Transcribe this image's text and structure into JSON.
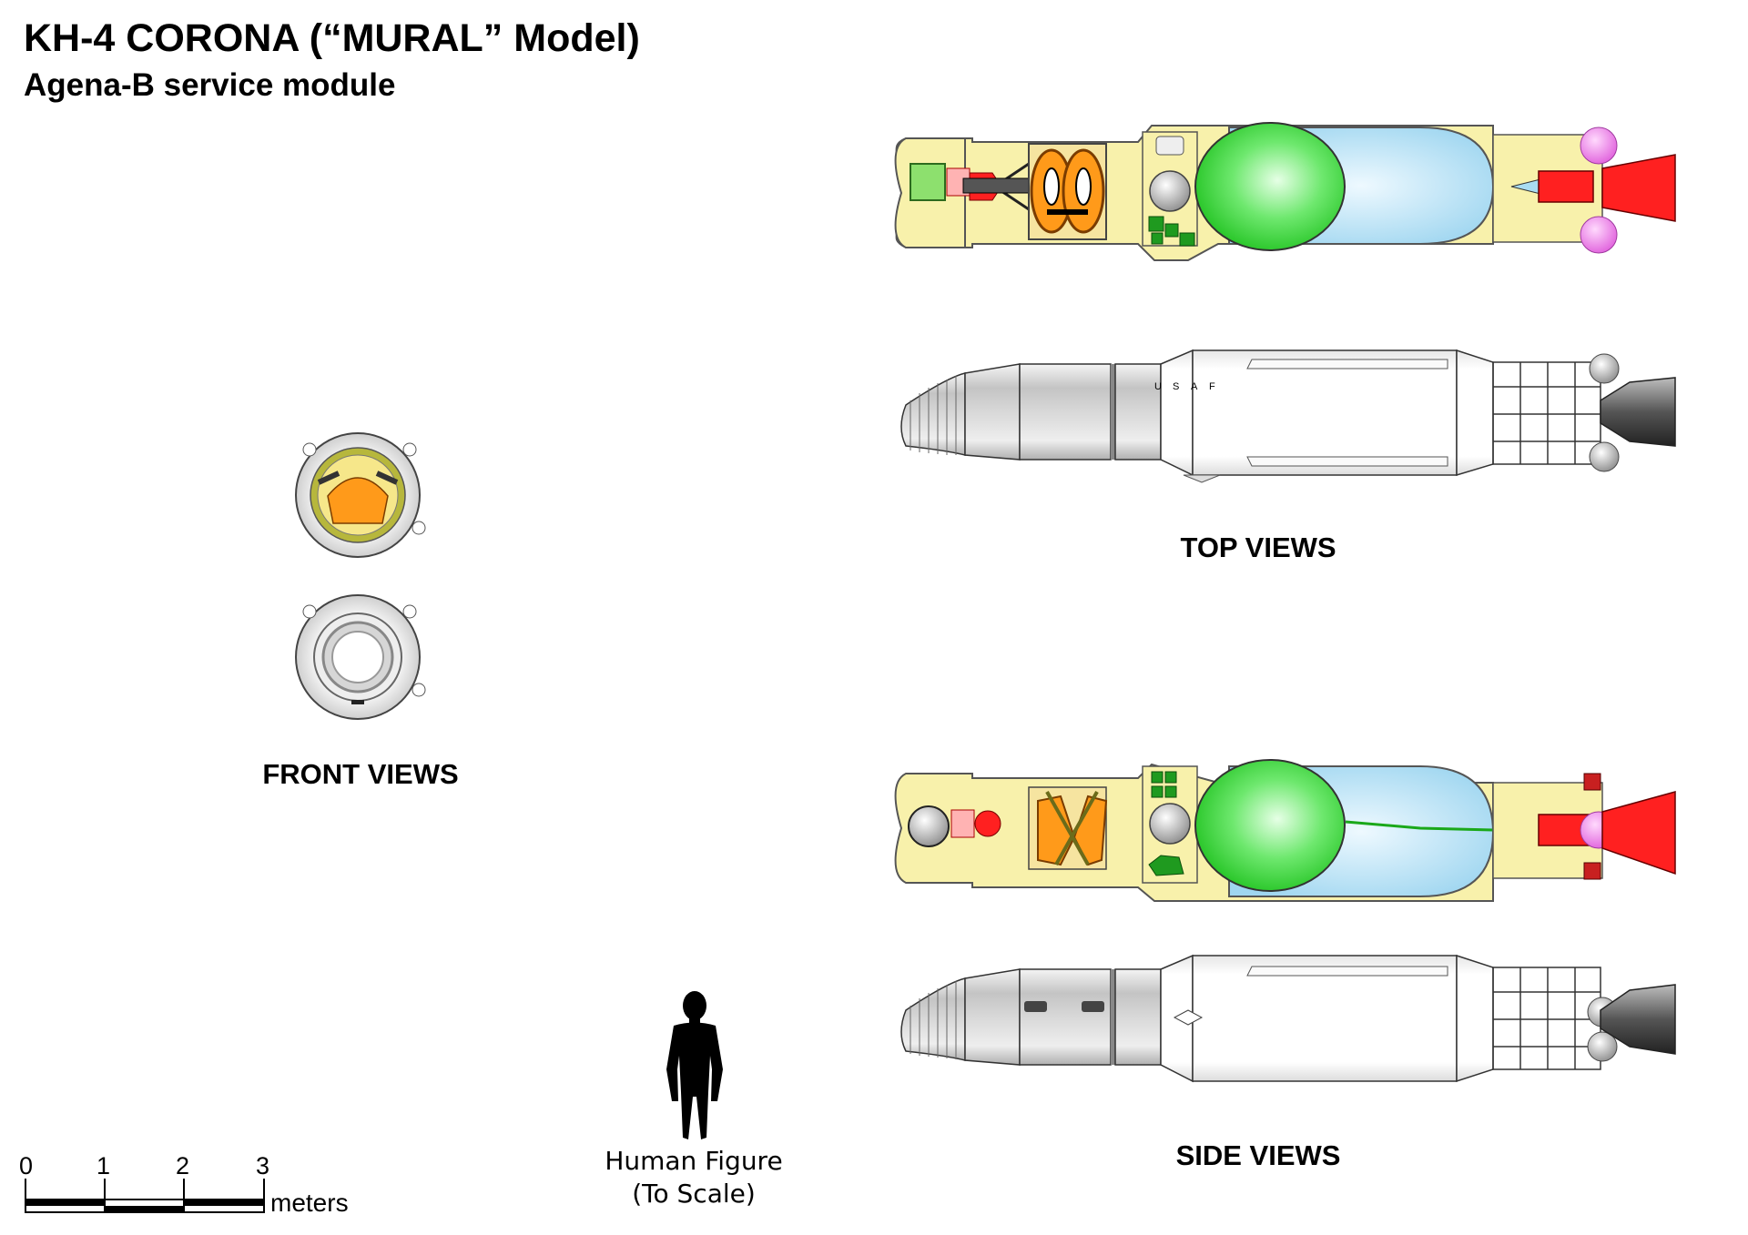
{
  "title": "KH-4 CORONA (“MURAL” Model)",
  "subtitle": "Agena-B service module",
  "labels": {
    "top_views": "TOP VIEWS",
    "side_views": "SIDE VIEWS",
    "front_views": "FRONT VIEWS"
  },
  "hull_marking": [
    "U",
    "S",
    "A",
    "F"
  ],
  "human_figure": {
    "line1": "Human Figure",
    "line2": "(To Scale)"
  },
  "scale_bar": {
    "ticks": [
      "0",
      "1",
      "2",
      "3"
    ],
    "unit": "meters"
  },
  "colors": {
    "hull_cream": "#f8f1ab",
    "oxidizer_tank_green": "#3ddc3d",
    "fuel_tank_blue": "#a9dcf2",
    "engine_red": "#ff2020",
    "pressure_sphere_pink": "#ee7ee9",
    "camera_orange": "#ff9a1a",
    "skin_silver": "#c8c8c8"
  }
}
